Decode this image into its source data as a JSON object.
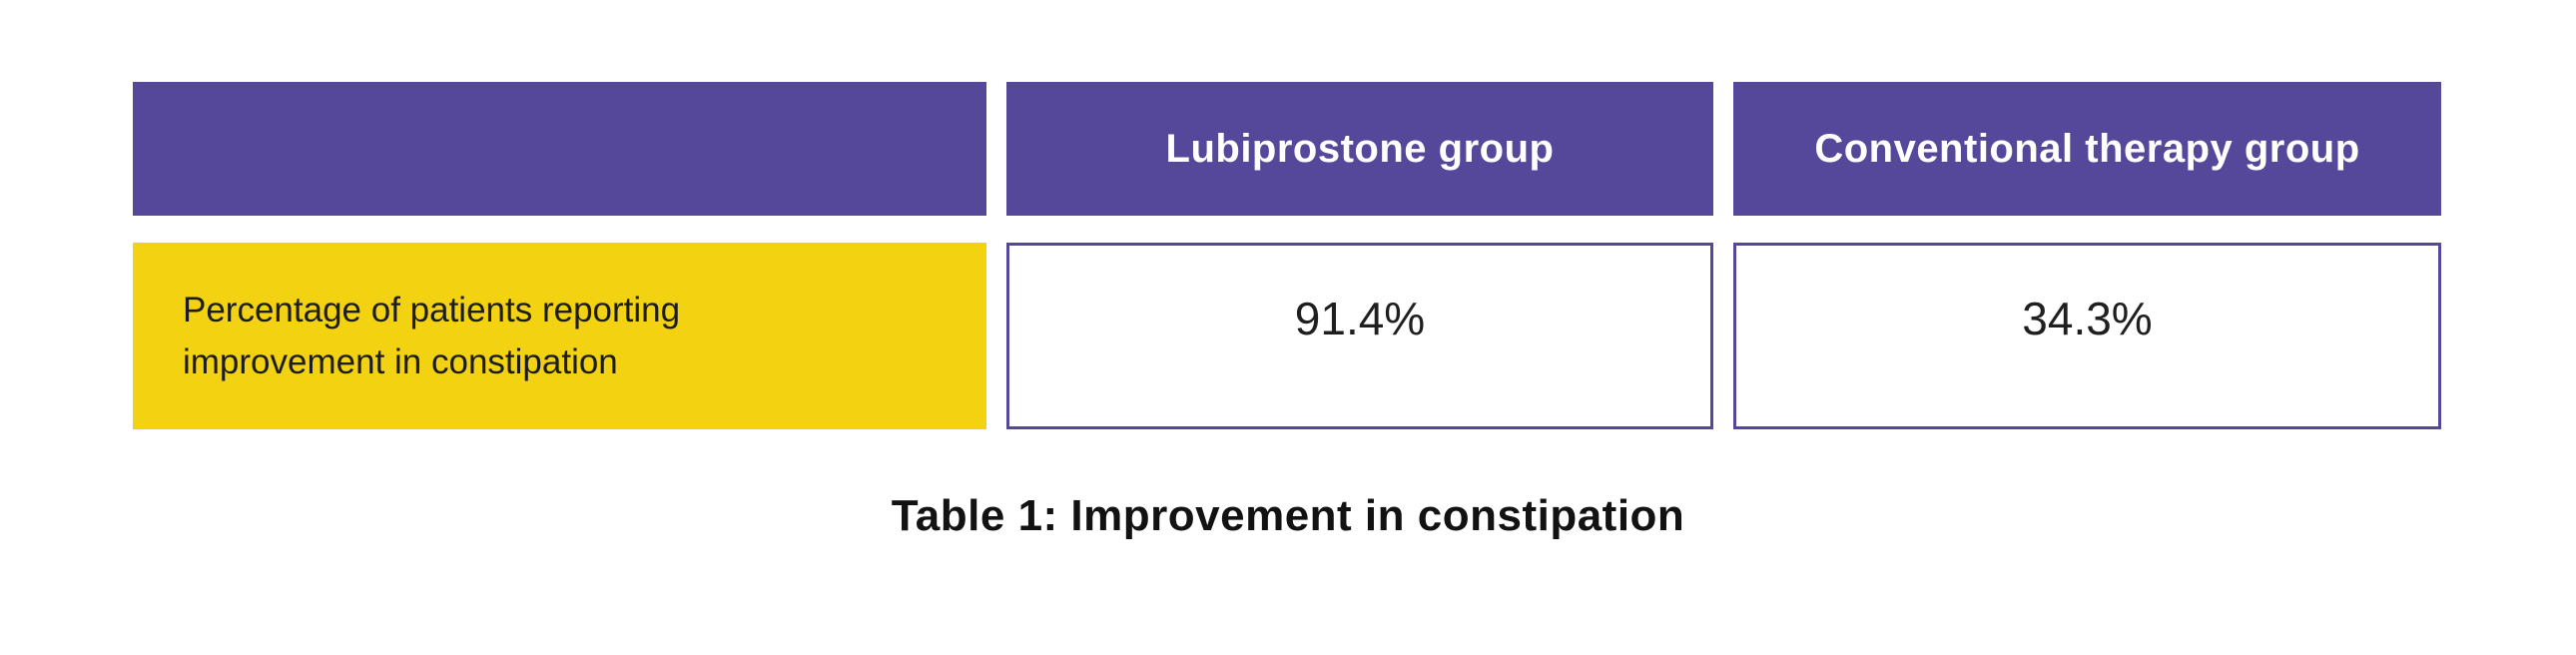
{
  "page": {
    "background_color": "#ffffff"
  },
  "colors": {
    "header_bg": "#55489B",
    "header_text": "#FFFFFF",
    "row_label_bg": "#F3D211",
    "row_label_text": "#1C1C1C",
    "value_text": "#1F1F1F",
    "value_cell_border": "#55489B"
  },
  "table": {
    "columns": [
      {
        "label": ""
      },
      {
        "label": "Lubiprostone group"
      },
      {
        "label": "Conventional therapy group"
      }
    ],
    "rows": [
      {
        "label": "Percentage of patients reporting improvement in constipation",
        "values": [
          "91.4%",
          "34.3%"
        ]
      }
    ]
  },
  "caption": {
    "text": "Table 1: Improvement in constipation"
  },
  "chart_data": {
    "type": "table",
    "title": "Table 1: Improvement in constipation",
    "columns": [
      "",
      "Lubiprostone group",
      "Conventional therapy group"
    ],
    "rows": [
      {
        "label": "Percentage of patients reporting improvement in constipation",
        "values": [
          91.4,
          34.3
        ]
      }
    ],
    "units": "%"
  }
}
